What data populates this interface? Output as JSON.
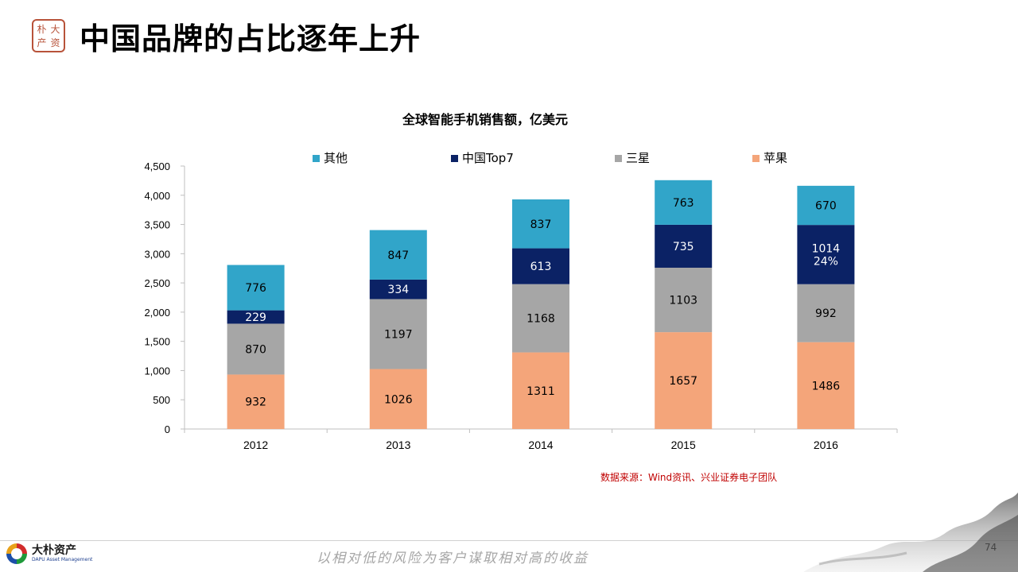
{
  "header": {
    "title": "中国品牌的占比逐年上升",
    "seal_chars": [
      "大",
      "朴",
      "资",
      "产"
    ]
  },
  "chart_data": {
    "type": "bar",
    "stacked": true,
    "title": "全球智能手机销售额，亿美元",
    "categories": [
      "2012",
      "2013",
      "2014",
      "2015",
      "2016"
    ],
    "series": [
      {
        "name": "苹果",
        "color": "#f4a57a",
        "values": [
          932,
          1026,
          1311,
          1657,
          1486
        ],
        "labels": [
          "932",
          "1026",
          "1311",
          "1657",
          "1486"
        ]
      },
      {
        "name": "三星",
        "color": "#a6a6a6",
        "values": [
          870,
          1197,
          1168,
          1103,
          992
        ],
        "labels": [
          "870",
          "1197",
          "1168",
          "1103",
          "992"
        ]
      },
      {
        "name": "中国Top7",
        "color": "#0b2265",
        "values": [
          229,
          334,
          613,
          735,
          1014
        ],
        "labels": [
          "229",
          "334",
          "613",
          "735",
          "1014\n24%"
        ]
      },
      {
        "name": "其他",
        "color": "#31a5c9",
        "values": [
          776,
          847,
          837,
          763,
          670
        ],
        "labels": [
          "776",
          "847",
          "837",
          "763",
          "670"
        ]
      }
    ],
    "legend_order": [
      "其他",
      "中国Top7",
      "三星",
      "苹果"
    ],
    "ylim": [
      0,
      4500
    ],
    "yticks": [
      "0",
      "500",
      "1,000",
      "1,500",
      "2,000",
      "2,500",
      "3,000",
      "3,500",
      "4,000",
      "4,500"
    ],
    "ytick_values": [
      0,
      500,
      1000,
      1500,
      2000,
      2500,
      3000,
      3500,
      4000,
      4500
    ],
    "legend_position": "top",
    "grid": false
  },
  "source_note": "数据来源：Wind资讯、兴业证券电子团队",
  "footer": {
    "logo_cn": "大朴资产",
    "logo_en": "DAPU Asset Management",
    "slogan": "以相对低的风险为客户谋取相对高的收益",
    "page_number": "74"
  }
}
